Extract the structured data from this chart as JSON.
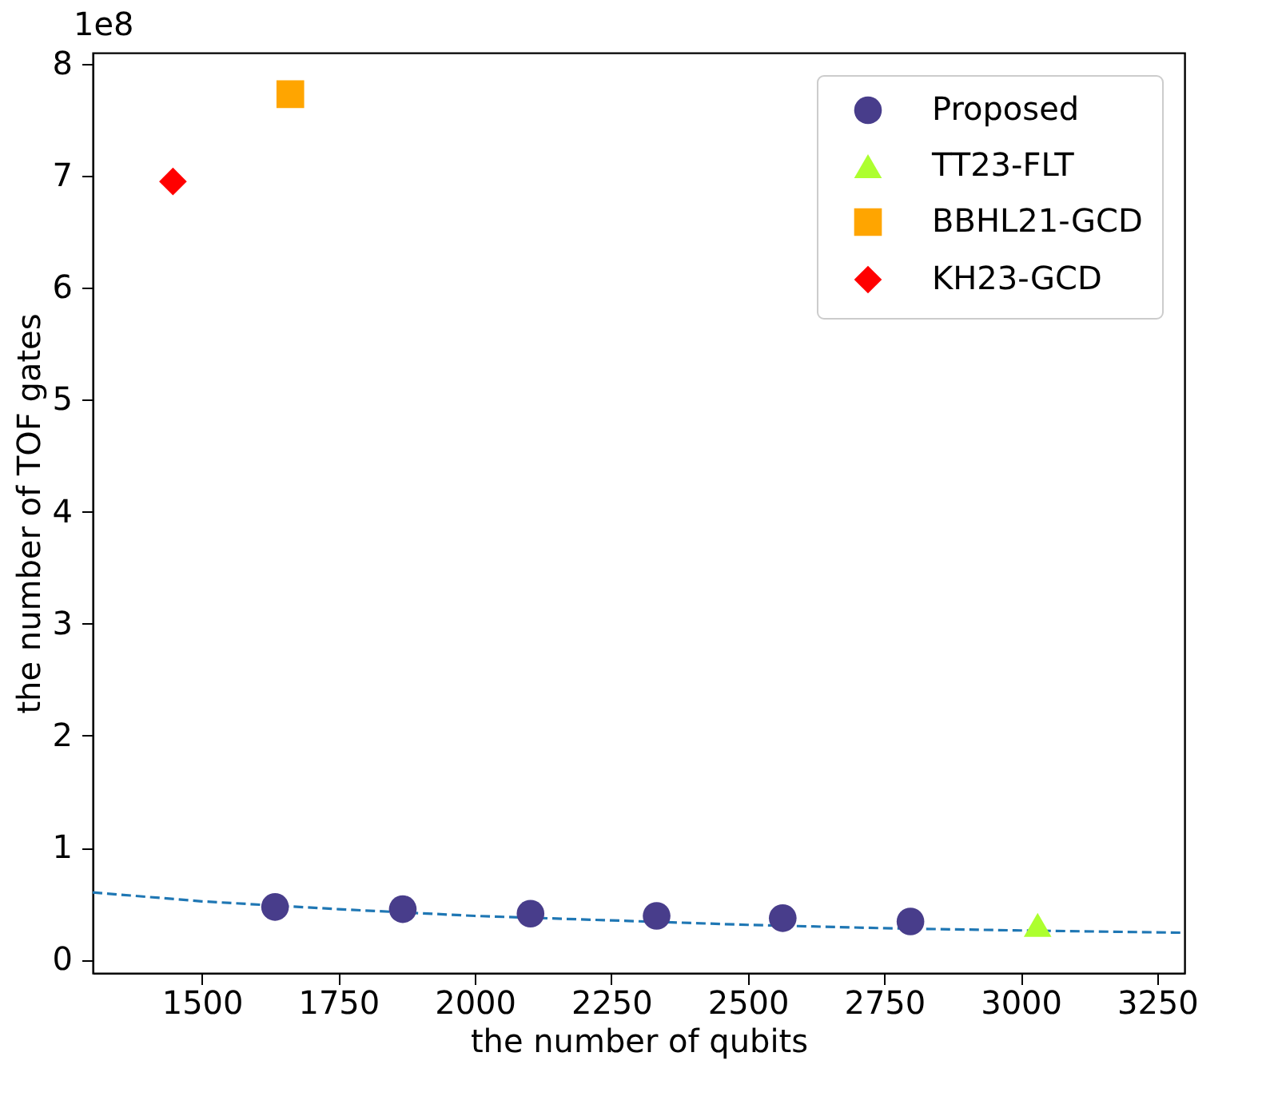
{
  "chart_data": {
    "type": "scatter",
    "xlabel": "the number of qubits",
    "ylabel": "the number of TOF gates",
    "annotations": [
      "1e8"
    ],
    "xlim": [
      1300,
      3300
    ],
    "xticks": [
      1500,
      1750,
      2000,
      2250,
      2500,
      2750,
      3000,
      3250
    ],
    "ylim": [
      -0.12,
      8.1
    ],
    "yticks": [
      0,
      1,
      2,
      3,
      4,
      5,
      6,
      7,
      8
    ],
    "grid": false,
    "legend": "top right",
    "series": [
      {
        "name": "Proposed",
        "color": "#483d8b",
        "marker": "circle",
        "x": [
          1634,
          1868,
          2102,
          2333,
          2564,
          2798
        ],
        "values": [
          0.47,
          0.45,
          0.41,
          0.39,
          0.37,
          0.34
        ]
      },
      {
        "name": "TT23-FLT",
        "color": "#adff2f",
        "marker": "triangle",
        "x": [
          3031
        ],
        "values": [
          0.31
        ]
      },
      {
        "name": "BBHL21-GCD",
        "color": "#ffa500",
        "marker": "square",
        "x": [
          1662
        ],
        "values": [
          7.73
        ]
      },
      {
        "name": "KH23-GCD",
        "color": "#ff0000",
        "marker": "diamond",
        "x": [
          1447
        ],
        "values": [
          6.95
        ]
      },
      {
        "type": "line",
        "color": "#1f77b4",
        "line_style": "dashed",
        "marker": "none",
        "x": [
          1300,
          1500,
          1750,
          2000,
          2250,
          2500,
          2750,
          3000,
          3300
        ],
        "values": [
          0.6,
          0.52,
          0.45,
          0.39,
          0.35,
          0.31,
          0.28,
          0.26,
          0.24
        ]
      }
    ]
  }
}
